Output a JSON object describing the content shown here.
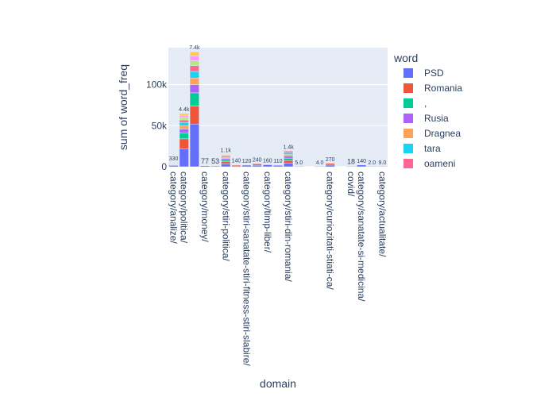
{
  "chart_data": {
    "type": "bar",
    "barmode": "stack",
    "xlabel": "domain",
    "ylabel": "sum of word_freq",
    "ylim": [
      0,
      145000
    ],
    "yticks": [
      0,
      50000,
      100000
    ],
    "ytick_labels": [
      "0",
      "50k",
      "100k"
    ],
    "grid": true,
    "legend_title": "word",
    "legend_position": "right",
    "legend": [
      {
        "name": "PSD",
        "color": "#636efa"
      },
      {
        "name": "Romania",
        "color": "#EF553B"
      },
      {
        "name": ",",
        "color": "#00cc96"
      },
      {
        "name": "Rusia",
        "color": "#ab63fa"
      },
      {
        "name": "Dragnea",
        "color": "#FFA15A"
      },
      {
        "name": "tara",
        "color": "#19d3f3"
      },
      {
        "name": "oameni",
        "color": "#FF6692"
      }
    ],
    "segment_palette": [
      "#636efa",
      "#EF553B",
      "#00cc96",
      "#ab63fa",
      "#FFA15A",
      "#19d3f3",
      "#FF6692",
      "#B6E880",
      "#FF97FF",
      "#FECB52"
    ],
    "bars": [
      {
        "label": "category/analize/",
        "total": 5000,
        "total_label": "330",
        "labeled": true,
        "segments": [
          1600,
          600,
          500,
          500,
          400,
          400,
          400,
          300,
          300
        ]
      },
      {
        "label": "category/politica/",
        "total": 65000,
        "total_label": "4.4k",
        "labeled": true,
        "segments": [
          22000,
          12000,
          7000,
          5000,
          4000,
          4000,
          3000,
          3000,
          2500,
          2500
        ]
      },
      {
        "label": "",
        "total": 140000,
        "total_label": "7.4k",
        "labeled": false,
        "segments": [
          52000,
          22000,
          16000,
          10000,
          8000,
          8000,
          7000,
          6000,
          6000,
          5000
        ]
      },
      {
        "label": "category/money/",
        "total": 1200,
        "total_label": "77",
        "labeled": true,
        "segments": [
          1200
        ]
      },
      {
        "label": "",
        "total": 900,
        "total_label": "53",
        "labeled": false,
        "segments": [
          900
        ]
      },
      {
        "label": "category/stiri-politica/",
        "total": 15000,
        "total_label": "1.1k",
        "labeled": true,
        "segments": [
          3500,
          2500,
          2000,
          2000,
          1500,
          1500,
          1000,
          1000
        ]
      },
      {
        "label": "",
        "total": 2200,
        "total_label": "140",
        "labeled": false,
        "segments": [
          1100,
          1100
        ]
      },
      {
        "label": "category/stiri-sanatate-stiri-fitness-stiri-slabire/",
        "total": 1900,
        "total_label": "120",
        "labeled": true,
        "segments": [
          1900
        ]
      },
      {
        "label": "",
        "total": 3500,
        "total_label": "240",
        "labeled": false,
        "segments": [
          1800,
          1700
        ]
      },
      {
        "label": "category/timp-liber/",
        "total": 2400,
        "total_label": "160",
        "labeled": true,
        "segments": [
          2400
        ]
      },
      {
        "label": "",
        "total": 1700,
        "total_label": "110",
        "labeled": false,
        "segments": [
          1700
        ]
      },
      {
        "label": "category/stiri-din-romania/",
        "total": 19000,
        "total_label": "1.4k",
        "labeled": true,
        "segments": [
          4500,
          3000,
          3000,
          2500,
          2000,
          2000,
          2000
        ]
      },
      {
        "label": "",
        "total": 80,
        "total_label": "5.0",
        "labeled": false,
        "segments": [
          80
        ]
      },
      {
        "label": "",
        "total": 0,
        "total_label": "",
        "labeled": false,
        "segments": []
      },
      {
        "label": "",
        "total": 60,
        "total_label": "4.0",
        "labeled": false,
        "segments": [
          60
        ]
      },
      {
        "label": "category/curiozitati-stiati-ca/",
        "total": 4000,
        "total_label": "270",
        "labeled": true,
        "segments": [
          2000,
          2000
        ]
      },
      {
        "label": "",
        "total": 0,
        "total_label": "",
        "labeled": false,
        "segments": []
      },
      {
        "label": "covid/",
        "total": 280,
        "total_label": "18",
        "labeled": true,
        "segments": [
          280
        ]
      },
      {
        "label": "category/sanatate-si-medicina/",
        "total": 2100,
        "total_label": "140",
        "labeled": true,
        "segments": [
          2100
        ]
      },
      {
        "label": "",
        "total": 30,
        "total_label": "2.0",
        "labeled": false,
        "segments": [
          30
        ]
      },
      {
        "label": "category/actualitate/",
        "total": 130,
        "total_label": "9.0",
        "labeled": true,
        "segments": [
          130
        ]
      }
    ]
  }
}
